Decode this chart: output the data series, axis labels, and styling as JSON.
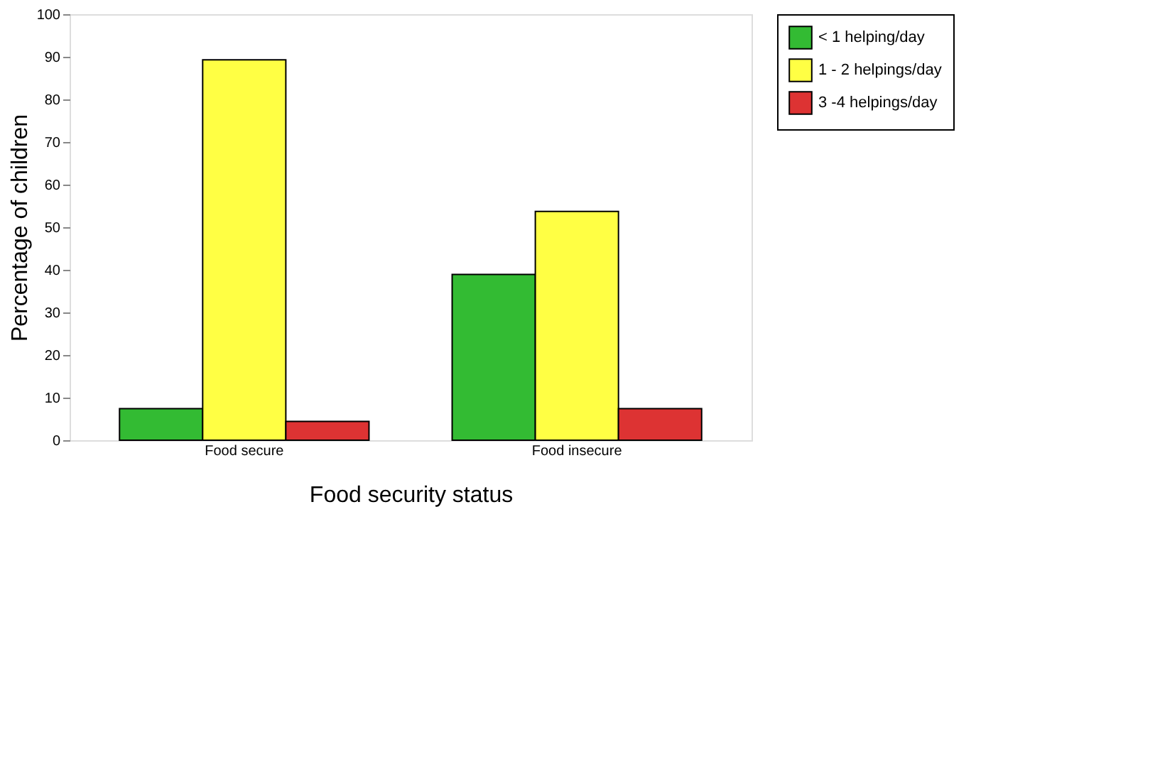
{
  "chart_data": {
    "type": "bar",
    "xlabel": "Food security status",
    "ylabel": "Percentage of children",
    "categories": [
      "Food secure",
      "Food insecure"
    ],
    "series": [
      {
        "name": "< 1 helping/day",
        "color": "#33bb33",
        "values": [
          7.4,
          38.9
        ]
      },
      {
        "name": "1 - 2 helpings/day",
        "color": "#ffff44",
        "values": [
          89.3,
          53.7
        ]
      },
      {
        "name": "3 -4 helpings/day",
        "color": "#dd3333",
        "values": [
          4.4,
          7.4
        ]
      }
    ],
    "ylim": [
      0,
      100
    ],
    "yticks": [
      0,
      10,
      20,
      30,
      40,
      50,
      60,
      70,
      80,
      90,
      100
    ],
    "grid": false,
    "legend": "right"
  }
}
